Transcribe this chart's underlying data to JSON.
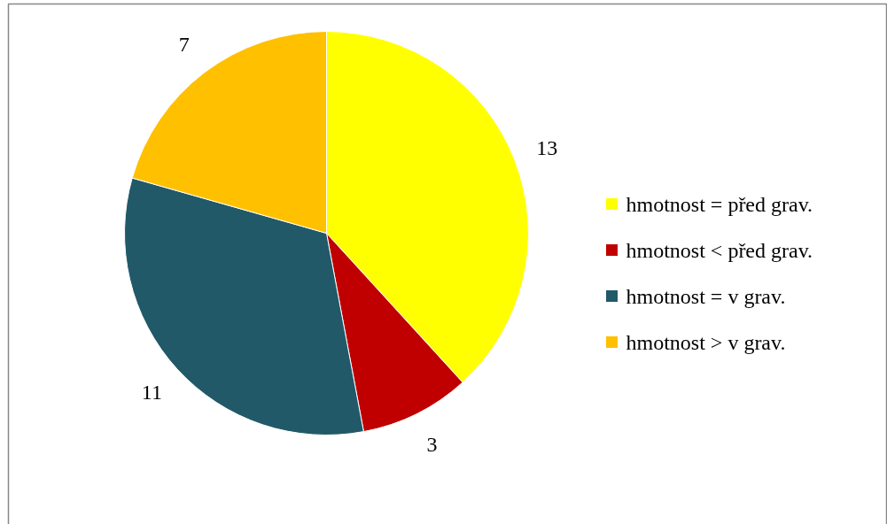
{
  "chart_data": {
    "type": "pie",
    "categories": [
      "hmotnost = před grav.",
      "hmotnost < před grav.",
      "hmotnost = v grav.",
      "hmotnost > v grav."
    ],
    "values": [
      13,
      3,
      11,
      7
    ],
    "colors": [
      "#ffff00",
      "#c00000",
      "#215968",
      "#ffc000"
    ],
    "data_labels": true,
    "legend": "right"
  }
}
